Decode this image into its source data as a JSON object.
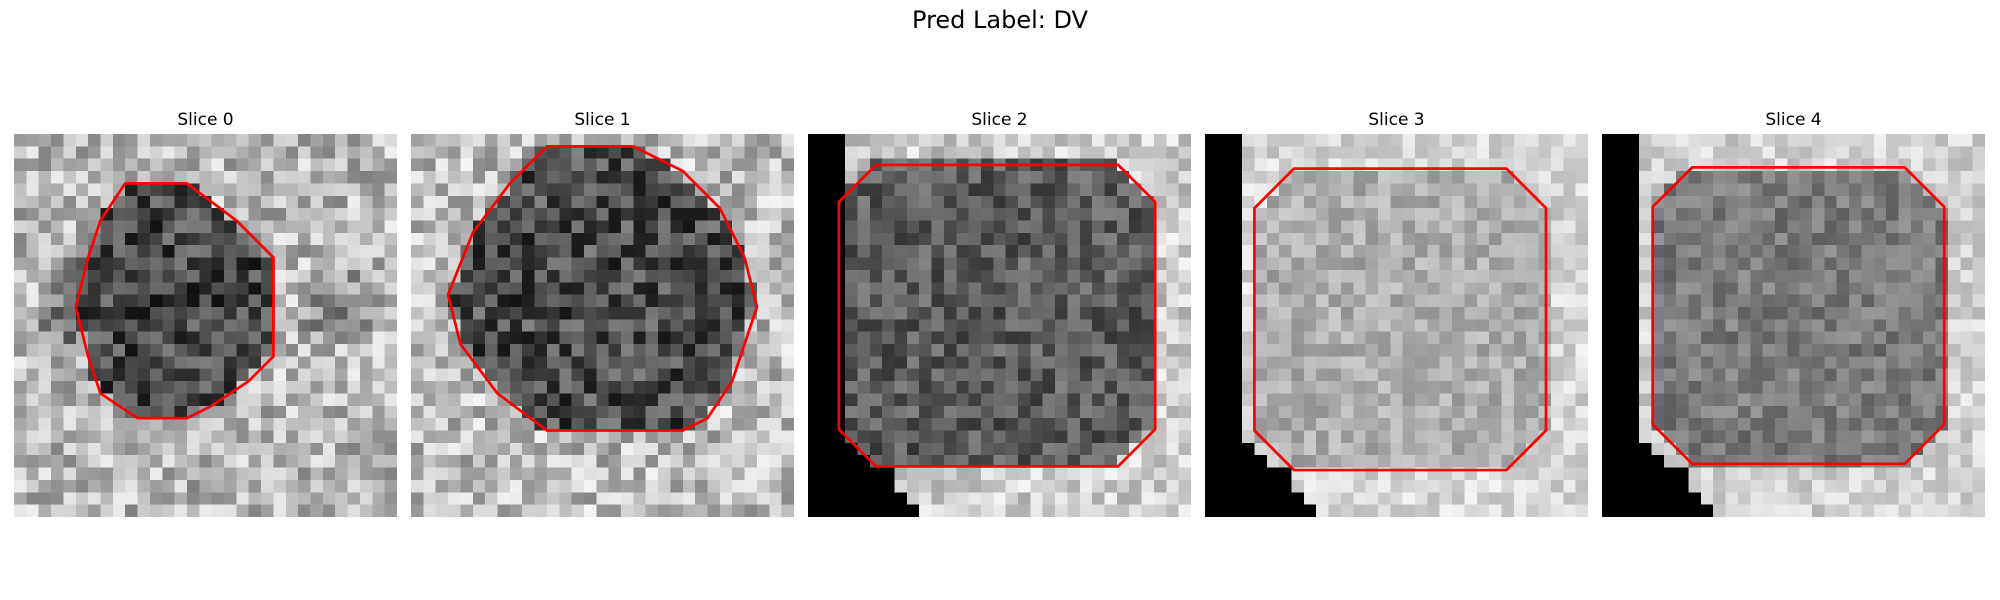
{
  "figure": {
    "title": "Pred Label: DV"
  },
  "panels": [
    {
      "title": "Slice 0",
      "colormap": "gray",
      "contour_color": "#ff0000"
    },
    {
      "title": "Slice 1",
      "colormap": "gray",
      "contour_color": "#ff0000"
    },
    {
      "title": "Slice 2",
      "colormap": "gray",
      "contour_color": "#ff0000"
    },
    {
      "title": "Slice 3",
      "colormap": "gray",
      "contour_color": "#ff0000"
    },
    {
      "title": "Slice 4",
      "colormap": "gray",
      "contour_color": "#ff0000"
    }
  ]
}
